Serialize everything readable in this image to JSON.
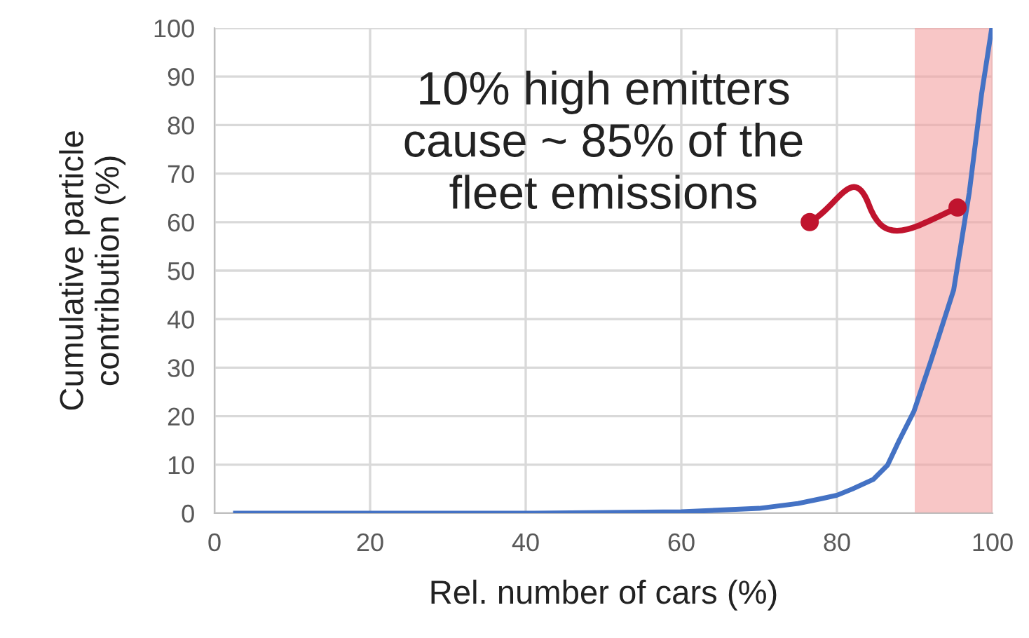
{
  "chart_data": {
    "type": "line",
    "xlabel": "Rel. number of cars (%)",
    "ylabel": "Cumulative particle\ncontribution (%)",
    "annotations": [
      "10% high emitters\ncause ~ 85% of the\nfleet emissions"
    ],
    "x": [
      2.7,
      20,
      40,
      60,
      70,
      75,
      78,
      80,
      82,
      84.7,
      86.5,
      88,
      89.9,
      92,
      95,
      97,
      98.6,
      99.9
    ],
    "series": [
      {
        "color": "#4472c4",
        "values": [
          0,
          0,
          0,
          0.3,
          1,
          2,
          3,
          3.7,
          5,
          7,
          9.9,
          15,
          21,
          31,
          46,
          66,
          86.5,
          100
        ]
      }
    ],
    "bands": [
      {
        "axis": "x",
        "from": 90,
        "to": 100,
        "color": "#f4a0a0"
      }
    ],
    "xlim": [
      0,
      100
    ],
    "ylim": [
      0,
      100
    ],
    "xticks": [
      0,
      20,
      40,
      60,
      80,
      100
    ],
    "yticks": [
      0,
      10,
      20,
      30,
      40,
      50,
      60,
      70,
      80,
      90,
      100
    ],
    "grid": true,
    "legend": false
  }
}
